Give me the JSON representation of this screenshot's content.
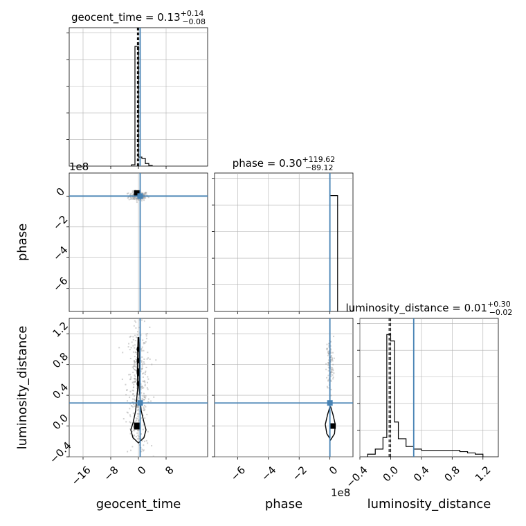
{
  "chart_data": {
    "type": "corner",
    "parameters": [
      "geocent_time",
      "phase",
      "luminosity_distance"
    ],
    "titles": {
      "geocent_time": {
        "name": "geocent_time",
        "median": "0.13",
        "plus": "+0.14",
        "minus": "−0.08"
      },
      "phase": {
        "name": "phase",
        "median": "0.30",
        "plus": "+119.62",
        "minus": "−89.12"
      },
      "luminosity_distance": {
        "name": "luminosity_distance",
        "median": "0.01",
        "plus": "+0.30",
        "minus": "−0.02"
      }
    },
    "axis_labels": {
      "x": [
        "geocent_time",
        "phase",
        "luminosity_distance"
      ],
      "y": [
        "phase",
        "luminosity_distance"
      ]
    },
    "offset_labels": {
      "geocent_top": "1e8",
      "phase_bottom": "1e8"
    },
    "ranges": {
      "geocent_time": [
        -20,
        20
      ],
      "phase": [
        -7.5,
        1.5
      ],
      "luminosity_distance": [
        -0.4,
        1.4
      ]
    },
    "ticks": {
      "geocent_time": {
        "values": [
          -16,
          -8,
          0,
          8
        ],
        "labels": [
          "−16",
          "−8",
          "0",
          "8"
        ]
      },
      "phase_x": {
        "values": [
          -6,
          -4,
          -2,
          0
        ],
        "labels": [
          "−6",
          "−4",
          "−2",
          "0"
        ]
      },
      "phase_y": {
        "values": [
          0,
          -2,
          -4,
          -6
        ],
        "labels": [
          "0",
          "−2",
          "−4",
          "−6"
        ]
      },
      "luminosity_distance": {
        "values": [
          -0.4,
          0.0,
          0.4,
          0.8,
          1.2
        ],
        "labels": [
          "−0.4",
          "0.0",
          "0.4",
          "0.8",
          "1.2"
        ]
      }
    },
    "truths": {
      "geocent_time": 0.5,
      "phase": 0.0,
      "luminosity_distance": 0.3
    },
    "quantile_lines": {
      "geocent_time": [
        0.0,
        -0.3,
        0.1
      ],
      "phase": [
        0.0,
        0.0
      ],
      "luminosity_distance": [
        0.0,
        -0.02,
        0.3
      ]
    },
    "hist_geocent_time": {
      "edges": [
        -2,
        -1,
        0,
        1,
        2,
        3,
        4
      ],
      "counts": [
        0.01,
        0.93,
        0.07,
        0.06,
        0.02,
        0.005
      ]
    },
    "hist_phase": {
      "edges": [
        0,
        0.5
      ],
      "counts": [
        0.9
      ]
    },
    "hist_luminosity_distance": {
      "edges": [
        -0.3,
        -0.2,
        -0.1,
        -0.05,
        0.0,
        0.05,
        0.1,
        0.2,
        0.3,
        0.4,
        0.5,
        0.6,
        0.7,
        0.8,
        0.9,
        1.0,
        1.1,
        1.2
      ],
      "counts": [
        0.02,
        0.06,
        0.15,
        0.95,
        0.9,
        0.27,
        0.14,
        0.08,
        0.06,
        0.05,
        0.05,
        0.05,
        0.05,
        0.05,
        0.04,
        0.03,
        0.02
      ]
    },
    "grid": true,
    "colors": {
      "truth": "#4682b4",
      "hist": "#000000",
      "grid": "#b0b0b0",
      "points": "#999999"
    }
  }
}
